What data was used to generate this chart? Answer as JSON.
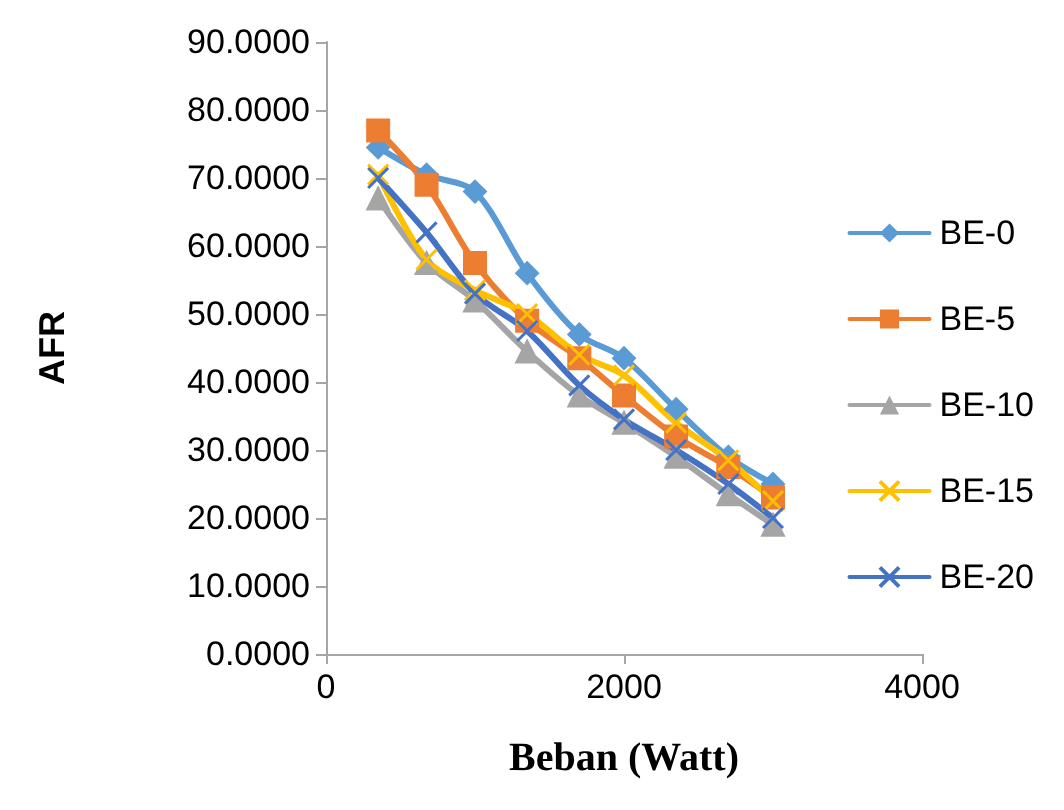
{
  "chart_data": {
    "type": "line",
    "xlabel": "Beban (Watt)",
    "ylabel": "AFR",
    "x": [
      350,
      675,
      1000,
      1350,
      1700,
      2000,
      2350,
      2700,
      3000
    ],
    "series": [
      {
        "name": "BE-0",
        "color": "#5b9bd5",
        "marker": "diamond",
        "values": [
          74.5,
          70.5,
          68,
          56,
          47,
          43.5,
          36,
          29,
          25
        ]
      },
      {
        "name": "BE-5",
        "color": "#ed7d31",
        "marker": "square",
        "values": [
          77,
          69,
          57.5,
          49,
          43.5,
          38,
          32,
          27.5,
          23
        ]
      },
      {
        "name": "BE-10",
        "color": "#a5a5a5",
        "marker": "triangle",
        "values": [
          67,
          57.5,
          52,
          44.5,
          38,
          34,
          29,
          23.5,
          19
        ]
      },
      {
        "name": "BE-15",
        "color": "#ffc000",
        "marker": "cross",
        "values": [
          70.5,
          58,
          53.5,
          50,
          44,
          41,
          34,
          28.5,
          22.5
        ]
      },
      {
        "name": "BE-20",
        "color": "#4472c4",
        "marker": "cross",
        "values": [
          70,
          62,
          53,
          47.5,
          39.5,
          34.5,
          30,
          25,
          20
        ]
      }
    ],
    "xlim": [
      0,
      4000
    ],
    "xticks": [
      0,
      2000,
      4000
    ],
    "ylim": [
      0,
      90
    ],
    "yticks": [
      {
        "value": 0,
        "label": "0.0000"
      },
      {
        "value": 10,
        "label": "10.0000"
      },
      {
        "value": 20,
        "label": "20.0000"
      },
      {
        "value": 30,
        "label": "30.0000"
      },
      {
        "value": 40,
        "label": "40.0000"
      },
      {
        "value": 50,
        "label": "50.0000"
      },
      {
        "value": 60,
        "label": "60.0000"
      },
      {
        "value": 70,
        "label": "70.0000"
      },
      {
        "value": 80,
        "label": "80.0000"
      },
      {
        "value": 90,
        "label": "90.0000"
      }
    ],
    "grid": false,
    "legend": "right"
  }
}
